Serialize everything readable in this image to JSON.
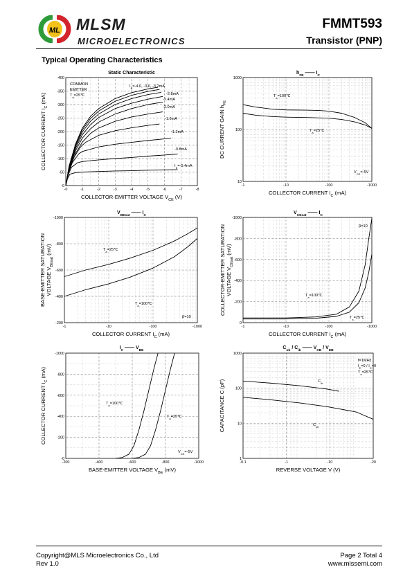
{
  "header": {
    "brand": "MLSM",
    "brand_sub": "MICROELECTRONICS",
    "part_number": "FMMT593",
    "part_type": "Transistor  (PNP)"
  },
  "section_title": "Typical Operating Characteristics",
  "footer": {
    "copyright": "Copyright@MLS Microelectronics Co., Ltd",
    "rev": "Rev 1.0",
    "page": "Page 2 Total 4",
    "url": "www.mlssemi.com"
  },
  "colors": {
    "ink": "#000000",
    "grid": "#8a8a8a",
    "logo_green": "#2e9b3a",
    "logo_red": "#d3242b",
    "logo_yellow": "#f2c21b"
  },
  "chart_data": [
    {
      "id": "static",
      "type": "line",
      "title": "Static Characteristic",
      "xlabel": "COLLECTOR-EMITTER VOLTAGE V",
      "xlabel_sub": "CE",
      "xlabel_unit": " (V)",
      "ylabel": "COLLECTOR CURRENT  I",
      "ylabel_sub": "C",
      "ylabel_unit": "  (mA)",
      "xlim": [
        0,
        -8
      ],
      "ylim": [
        0,
        -400
      ],
      "xticks": [
        "-0",
        "-1",
        "-2",
        "-3",
        "-4",
        "-5",
        "-6",
        "-7",
        "-8"
      ],
      "yticks": [
        "-0",
        "-50",
        "-100",
        "-150",
        "-200",
        "-250",
        "-300",
        "-350",
        "-400"
      ],
      "annotations": [
        "COMMON",
        "EMITTER",
        "T",
        "a",
        "=25℃",
        "I",
        "B",
        "=-4.0, -3.6, -3.2mA",
        "-2.8mA",
        "-2.4mA",
        "-2.0mA",
        "-1.6mA",
        "-1.2mA",
        "-0.8mA",
        "I",
        "B",
        "=-0.4mA"
      ],
      "series": [
        {
          "name": "I_B=-0.4mA",
          "points": [
            [
              0,
              0
            ],
            [
              -0.1,
              -25
            ],
            [
              -0.25,
              -42
            ],
            [
              -0.6,
              -48
            ],
            [
              -1,
              -50
            ],
            [
              -2,
              -52
            ],
            [
              -3,
              -54
            ],
            [
              -4,
              -55
            ],
            [
              -5,
              -57
            ],
            [
              -6,
              -58
            ],
            [
              -6.8,
              -59
            ]
          ]
        },
        {
          "name": "I_B=-0.8mA",
          "points": [
            [
              0,
              0
            ],
            [
              -0.15,
              -40
            ],
            [
              -0.35,
              -68
            ],
            [
              -0.7,
              -84
            ],
            [
              -1,
              -89
            ],
            [
              -2,
              -95
            ],
            [
              -3,
              -100
            ],
            [
              -4,
              -104
            ],
            [
              -5,
              -109
            ],
            [
              -6,
              -113
            ],
            [
              -6.8,
              -117
            ]
          ]
        },
        {
          "name": "I_B=-1.2mA",
          "points": [
            [
              0,
              0
            ],
            [
              -0.15,
              -45
            ],
            [
              -0.4,
              -85
            ],
            [
              -0.8,
              -118
            ],
            [
              -1,
              -126
            ],
            [
              -2,
              -143
            ],
            [
              -3,
              -153
            ],
            [
              -4,
              -160
            ],
            [
              -5,
              -167
            ],
            [
              -6,
              -173
            ],
            [
              -6.4,
              -176
            ]
          ]
        },
        {
          "name": "I_B=-1.6mA",
          "points": [
            [
              0,
              0
            ],
            [
              -0.2,
              -55
            ],
            [
              -0.5,
              -105
            ],
            [
              -0.9,
              -143
            ],
            [
              -1.2,
              -160
            ],
            [
              -2,
              -186
            ],
            [
              -3,
              -203
            ],
            [
              -4,
              -214
            ],
            [
              -5,
              -223
            ],
            [
              -5.7,
              -228
            ]
          ]
        },
        {
          "name": "I_B=-2.0mA",
          "points": [
            [
              0,
              0
            ],
            [
              -0.2,
              -58
            ],
            [
              -0.6,
              -120
            ],
            [
              -1,
              -160
            ],
            [
              -1.5,
              -193
            ],
            [
              -2,
              -213
            ],
            [
              -3,
              -238
            ],
            [
              -4,
              -254
            ],
            [
              -5,
              -265
            ],
            [
              -5.9,
              -273
            ]
          ]
        },
        {
          "name": "I_B=-2.4mA",
          "points": [
            [
              0,
              0
            ],
            [
              -0.2,
              -62
            ],
            [
              -0.6,
              -130
            ],
            [
              -1,
              -175
            ],
            [
              -1.5,
              -210
            ],
            [
              -2,
              -235
            ],
            [
              -3,
              -265
            ],
            [
              -4,
              -285
            ],
            [
              -5,
              -300
            ],
            [
              -5.9,
              -309
            ]
          ]
        },
        {
          "name": "I_B=-2.8mA",
          "points": [
            [
              0,
              0
            ],
            [
              -0.2,
              -65
            ],
            [
              -0.6,
              -138
            ],
            [
              -1,
              -188
            ],
            [
              -1.5,
              -225
            ],
            [
              -2,
              -252
            ],
            [
              -3,
              -285
            ],
            [
              -4,
              -305
            ],
            [
              -5,
              -320
            ],
            [
              -5.9,
              -330
            ]
          ]
        },
        {
          "name": "I_B=-3.2mA",
          "points": [
            [
              0,
              0
            ],
            [
              -0.2,
              -68
            ],
            [
              -0.6,
              -145
            ],
            [
              -1,
              -198
            ],
            [
              -1.5,
              -238
            ],
            [
              -2,
              -265
            ],
            [
              -3,
              -300
            ],
            [
              -4,
              -322
            ],
            [
              -5,
              -337
            ],
            [
              -5.8,
              -345
            ]
          ]
        },
        {
          "name": "I_B=-3.6mA",
          "points": [
            [
              0,
              0
            ],
            [
              -0.2,
              -70
            ],
            [
              -0.6,
              -150
            ],
            [
              -1,
              -206
            ],
            [
              -1.5,
              -248
            ],
            [
              -2,
              -276
            ],
            [
              -3,
              -312
            ],
            [
              -4,
              -334
            ],
            [
              -5,
              -349
            ],
            [
              -5.7,
              -356
            ]
          ]
        },
        {
          "name": "I_B=-4.0mA",
          "points": [
            [
              0,
              0
            ],
            [
              -0.2,
              -72
            ],
            [
              -0.6,
              -155
            ],
            [
              -1,
              -212
            ],
            [
              -1.5,
              -256
            ],
            [
              -2,
              -285
            ],
            [
              -3,
              -322
            ],
            [
              -4,
              -344
            ],
            [
              -5,
              -358
            ],
            [
              -5.6,
              -364
            ]
          ]
        }
      ]
    },
    {
      "id": "hfe",
      "type": "line",
      "title": "h",
      "title_parts": [
        "h",
        "FE",
        "I",
        "C"
      ],
      "xlabel": "COLLECTOR CURRENT  I",
      "xlabel_sub": "C",
      "xlabel_unit": "  (mA)",
      "ylabel": "DC CURRENT GAIN  h",
      "ylabel_sub": "FE",
      "ylabel_unit": "",
      "xscale": "log",
      "yscale": "log",
      "xlim": [
        -1,
        -1000
      ],
      "ylim": [
        10,
        1000
      ],
      "xticks": [
        "-1",
        "-10",
        "-100",
        "-1000"
      ],
      "yticks": [
        "10",
        "100",
        "1000"
      ],
      "annotations": [
        "T",
        "a",
        "=100℃",
        "T",
        "a",
        "=25℃",
        "V",
        "CE",
        "=-5V"
      ],
      "series": [
        {
          "name": "T_a=100℃",
          "points": [
            [
              -1,
              300
            ],
            [
              -2,
              270
            ],
            [
              -5,
              245
            ],
            [
              -10,
              238
            ],
            [
              -30,
              236
            ],
            [
              -60,
              232
            ],
            [
              -100,
              225
            ],
            [
              -200,
              205
            ],
            [
              -400,
              170
            ],
            [
              -700,
              135
            ],
            [
              -1000,
              105
            ]
          ]
        },
        {
          "name": "T_a=25℃",
          "points": [
            [
              -1,
              205
            ],
            [
              -2,
              188
            ],
            [
              -5,
              177
            ],
            [
              -10,
              173
            ],
            [
              -30,
              170
            ],
            [
              -100,
              165
            ],
            [
              -200,
              156
            ],
            [
              -400,
              140
            ],
            [
              -700,
              122
            ],
            [
              -1000,
              105
            ]
          ]
        }
      ]
    },
    {
      "id": "vbesat",
      "type": "line",
      "title_parts": [
        "V",
        "BEsat",
        "I",
        "C"
      ],
      "xlabel": "COLLECTOR CURRENT  I",
      "xlabel_sub": "C",
      "xlabel_unit": " (mA)",
      "ylabel_line1": "BASE-EMITTER SATURATION",
      "ylabel": "VOLTAGE  V",
      "ylabel_sub": "BEsat",
      "ylabel_unit": "  (mV)",
      "xscale": "log",
      "xlim": [
        -1,
        -1000
      ],
      "ylim": [
        -200,
        -1000
      ],
      "xticks": [
        "-1",
        "-10",
        "-100",
        "-1000"
      ],
      "yticks": [
        "-200",
        "-400",
        "-600",
        "-800",
        "-1000"
      ],
      "annotations": [
        "T",
        "a",
        "=25℃",
        "T",
        "a",
        "=100℃",
        "β=10"
      ],
      "series": [
        {
          "name": "T_a=25℃",
          "points": [
            [
              -1,
              -550
            ],
            [
              -3,
              -600
            ],
            [
              -10,
              -643
            ],
            [
              -30,
              -690
            ],
            [
              -100,
              -750
            ],
            [
              -300,
              -820
            ],
            [
              -600,
              -875
            ],
            [
              -1000,
              -920
            ]
          ]
        },
        {
          "name": "T_a=100℃",
          "points": [
            [
              -1,
              -400
            ],
            [
              -3,
              -450
            ],
            [
              -10,
              -495
            ],
            [
              -30,
              -545
            ],
            [
              -100,
              -615
            ],
            [
              -300,
              -700
            ],
            [
              -600,
              -775
            ],
            [
              -1000,
              -840
            ]
          ]
        }
      ]
    },
    {
      "id": "vcesat",
      "type": "line",
      "title_parts": [
        "V",
        "CEsat",
        "I",
        "C"
      ],
      "xlabel": "COLLECTOR CURRENT  I",
      "xlabel_sub": "C",
      "xlabel_unit": " (mA)",
      "ylabel_line1": "COLLECTOR-EMITTER SATURATION",
      "ylabel": "VOLTAGE  V",
      "ylabel_sub": "CEsat",
      "ylabel_unit": "  (mV)",
      "xscale": "log",
      "xlim": [
        -1,
        -1000
      ],
      "ylim": [
        0,
        -1000
      ],
      "xticks": [
        "-1",
        "-10",
        "-100",
        "-1000"
      ],
      "yticks": [
        "0",
        "-200",
        "-400",
        "-600",
        "-800",
        "-1000"
      ],
      "annotations": [
        "β=10",
        "T",
        "a",
        "=100℃",
        "T",
        "a",
        "=25℃"
      ],
      "series": [
        {
          "name": "T_a=100℃",
          "points": [
            [
              -1,
              -45
            ],
            [
              -10,
              -45
            ],
            [
              -50,
              -55
            ],
            [
              -150,
              -80
            ],
            [
              -300,
              -150
            ],
            [
              -500,
              -300
            ],
            [
              -700,
              -550
            ],
            [
              -850,
              -800
            ],
            [
              -1000,
              -990
            ]
          ]
        },
        {
          "name": "T_a=25℃",
          "points": [
            [
              -1,
              -35
            ],
            [
              -10,
              -35
            ],
            [
              -50,
              -42
            ],
            [
              -150,
              -60
            ],
            [
              -300,
              -100
            ],
            [
              -500,
              -190
            ],
            [
              -700,
              -330
            ],
            [
              -850,
              -480
            ],
            [
              -1000,
              -650
            ]
          ]
        }
      ]
    },
    {
      "id": "icvbe",
      "type": "line",
      "title_parts": [
        "I",
        "C",
        "V",
        "BE"
      ],
      "xlabel": "BASE-EMITTER VOLTAGE   V",
      "xlabel_sub": "BE",
      "xlabel_unit": " (mV)",
      "ylabel": "COLLECTOR CURRENT I",
      "ylabel_sub": "C",
      "ylabel_unit": " (mA)",
      "xlim": [
        -200,
        -1000
      ],
      "ylim": [
        0,
        -1000
      ],
      "xticks": [
        "-200",
        "-400",
        "-600",
        "-800",
        "-1000"
      ],
      "yticks": [
        "-0",
        "-200",
        "-400",
        "-600",
        "-800",
        "-1000"
      ],
      "annotations": [
        "T",
        "a",
        "=100℃",
        "T",
        "a",
        "=25℃",
        "V",
        "CE",
        "=-5V"
      ],
      "series": [
        {
          "name": "T_a=100℃",
          "points": [
            [
              -500,
              0
            ],
            [
              -540,
              -8
            ],
            [
              -580,
              -40
            ],
            [
              -610,
              -120
            ],
            [
              -640,
              -270
            ],
            [
              -670,
              -450
            ],
            [
              -700,
              -650
            ],
            [
              -730,
              -850
            ],
            [
              -755,
              -1000
            ]
          ]
        },
        {
          "name": "T_a=25℃",
          "points": [
            [
              -600,
              0
            ],
            [
              -640,
              -8
            ],
            [
              -680,
              -40
            ],
            [
              -710,
              -120
            ],
            [
              -740,
              -270
            ],
            [
              -770,
              -450
            ],
            [
              -800,
              -650
            ],
            [
              -830,
              -850
            ],
            [
              -855,
              -1000
            ]
          ]
        }
      ]
    },
    {
      "id": "cap",
      "type": "line",
      "title_parts": [
        "C",
        "ob",
        "C",
        "ib",
        "V",
        "CB",
        "V",
        "EB"
      ],
      "xlabel": "REVERSE VOLTAGE   V    (V)",
      "ylabel": "CAPACITANCE   C    (pF)",
      "xscale": "log",
      "yscale": "log",
      "xlim": [
        -0.1,
        -20
      ],
      "ylim": [
        1,
        1000
      ],
      "xticks": [
        "-0.1",
        "-1",
        "-10",
        "-20"
      ],
      "yticks": [
        "1",
        "10",
        "100",
        "1000"
      ],
      "annotations": [
        "f=1MHz",
        "I",
        "E",
        "=0 / I",
        "C",
        "=0",
        "T",
        "a",
        "=25℃",
        "C",
        "ib",
        "C",
        "ob"
      ],
      "series": [
        {
          "name": "C_ib",
          "points": [
            [
              -0.1,
              160
            ],
            [
              -0.3,
              140
            ],
            [
              -1,
              118
            ],
            [
              -3,
              95
            ],
            [
              -5,
              82
            ]
          ]
        },
        {
          "name": "C_ob",
          "points": [
            [
              -0.1,
              55
            ],
            [
              -0.3,
              47
            ],
            [
              -1,
              38
            ],
            [
              -3,
              30
            ],
            [
              -10,
              21
            ],
            [
              -20,
              13
            ]
          ]
        }
      ]
    }
  ]
}
